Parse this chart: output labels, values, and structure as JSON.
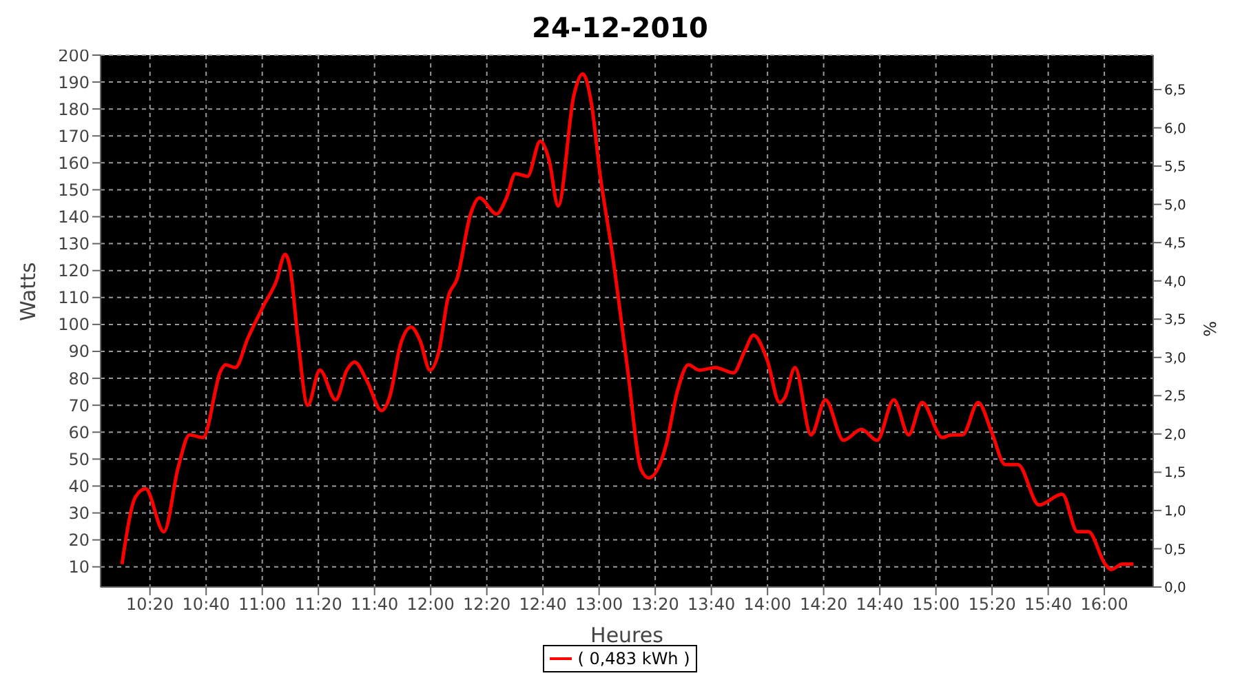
{
  "chart_data": {
    "type": "line",
    "title": "24-12-2010",
    "xlabel": "Heures",
    "ylabel": "Watts",
    "y2label": "%",
    "xlim": [
      10.04,
      16.29
    ],
    "ylim": [
      2.5,
      200
    ],
    "y2lim": [
      0,
      6.95
    ],
    "xticks": [
      {
        "value": 10.3333,
        "label": "10:20"
      },
      {
        "value": 10.6667,
        "label": "10:40"
      },
      {
        "value": 11,
        "label": "11:00"
      },
      {
        "value": 11.3333,
        "label": "11:20"
      },
      {
        "value": 11.6667,
        "label": "11:40"
      },
      {
        "value": 12,
        "label": "12:00"
      },
      {
        "value": 12.3333,
        "label": "12:20"
      },
      {
        "value": 12.6667,
        "label": "12:40"
      },
      {
        "value": 13,
        "label": "13:00"
      },
      {
        "value": 13.3333,
        "label": "13:20"
      },
      {
        "value": 13.6667,
        "label": "13:40"
      },
      {
        "value": 14,
        "label": "14:00"
      },
      {
        "value": 14.3333,
        "label": "14:20"
      },
      {
        "value": 14.6667,
        "label": "14:40"
      },
      {
        "value": 15,
        "label": "15:00"
      },
      {
        "value": 15.3333,
        "label": "15:20"
      },
      {
        "value": 15.6667,
        "label": "15:40"
      },
      {
        "value": 16,
        "label": "16:00"
      }
    ],
    "yticks": [
      10,
      20,
      30,
      40,
      50,
      60,
      70,
      80,
      90,
      100,
      110,
      120,
      130,
      140,
      150,
      160,
      170,
      180,
      190,
      200
    ],
    "y2ticks": [
      {
        "value": 0,
        "label": "0,0"
      },
      {
        "value": 0.5,
        "label": "0,5"
      },
      {
        "value": 1,
        "label": "1,0"
      },
      {
        "value": 1.5,
        "label": "1,5"
      },
      {
        "value": 2,
        "label": "2,0"
      },
      {
        "value": 2.5,
        "label": "2,5"
      },
      {
        "value": 3,
        "label": "3,0"
      },
      {
        "value": 3.5,
        "label": "3,5"
      },
      {
        "value": 4,
        "label": "4,0"
      },
      {
        "value": 4.5,
        "label": "4,5"
      },
      {
        "value": 5,
        "label": "5,0"
      },
      {
        "value": 5.5,
        "label": "5,5"
      },
      {
        "value": 6,
        "label": "6,0"
      },
      {
        "value": 6.5,
        "label": "6,5"
      }
    ],
    "grid": true,
    "legend": "bottom",
    "marker": "none",
    "line_style": "solid",
    "series": [
      {
        "name": "( 0,483 kWh )",
        "color": "#ff0000",
        "x": [
          10.167,
          10.248,
          10.307,
          10.416,
          10.501,
          10.568,
          10.648,
          10.755,
          10.782,
          10.84,
          10.915,
          11.008,
          11.083,
          11.136,
          11.168,
          11.208,
          11.27,
          11.342,
          11.436,
          11.502,
          11.548,
          11.622,
          11.708,
          11.756,
          11.823,
          11.884,
          11.937,
          11.996,
          12.049,
          12.103,
          12.157,
          12.237,
          12.29,
          12.391,
          12.45,
          12.503,
          12.575,
          12.65,
          12.703,
          12.757,
          12.85,
          12.903,
          12.957,
          13.005,
          13.077,
          13.17,
          13.25,
          13.296,
          13.397,
          13.464,
          13.53,
          13.597,
          13.69,
          13.797,
          13.864,
          13.917,
          13.997,
          14.072,
          14.104,
          14.163,
          14.259,
          14.344,
          14.451,
          14.558,
          14.651,
          14.75,
          14.838,
          14.918,
          15.038,
          15.091,
          15.158,
          15.251,
          15.331,
          15.411,
          15.487,
          15.612,
          15.75,
          15.84,
          15.906,
          16.005,
          16.04,
          16.106,
          16.173
        ],
        "values": [
          11,
          36,
          39,
          23,
          47,
          59,
          58,
          83,
          85,
          84,
          95,
          107,
          116,
          126,
          120,
          97,
          70,
          83,
          72,
          83,
          86,
          79,
          68,
          73,
          93,
          99,
          94,
          83,
          90,
          110,
          117,
          141,
          147,
          141,
          147,
          156,
          155,
          168,
          161,
          144,
          185,
          193,
          181,
          156,
          127,
          83,
          46,
          43,
          55,
          75,
          85,
          83,
          84,
          82,
          90,
          96,
          87,
          71,
          73,
          84,
          59,
          72,
          57,
          61,
          57,
          72,
          59,
          71,
          58,
          59,
          59,
          71,
          60,
          48,
          48,
          33,
          37,
          23,
          23,
          11,
          9,
          11,
          11
        ]
      }
    ]
  }
}
